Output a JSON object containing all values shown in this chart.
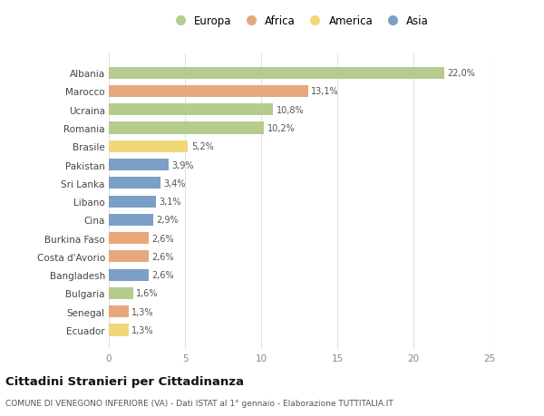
{
  "countries": [
    "Albania",
    "Marocco",
    "Ucraina",
    "Romania",
    "Brasile",
    "Pakistan",
    "Sri Lanka",
    "Libano",
    "Cina",
    "Burkina Faso",
    "Costa d'Avorio",
    "Bangladesh",
    "Bulgaria",
    "Senegal",
    "Ecuador"
  ],
  "values": [
    22.0,
    13.1,
    10.8,
    10.2,
    5.2,
    3.9,
    3.4,
    3.1,
    2.9,
    2.6,
    2.6,
    2.6,
    1.6,
    1.3,
    1.3
  ],
  "continents": [
    "Europa",
    "Africa",
    "Europa",
    "Europa",
    "America",
    "Asia",
    "Asia",
    "Asia",
    "Asia",
    "Africa",
    "Africa",
    "Asia",
    "Europa",
    "Africa",
    "America"
  ],
  "colors": {
    "Europa": "#b5cc8e",
    "Africa": "#e8a87c",
    "America": "#f0d878",
    "Asia": "#7b9fc7"
  },
  "legend_order": [
    "Europa",
    "Africa",
    "America",
    "Asia"
  ],
  "xlim": [
    0,
    25
  ],
  "xticks": [
    0,
    5,
    10,
    15,
    20,
    25
  ],
  "title": "Cittadini Stranieri per Cittadinanza",
  "subtitle": "COMUNE DI VENEGONO INFERIORE (VA) - Dati ISTAT al 1° gennaio - Elaborazione TUTTITALIA.IT",
  "bg_color": "#ffffff",
  "grid_color": "#e0e0e0"
}
